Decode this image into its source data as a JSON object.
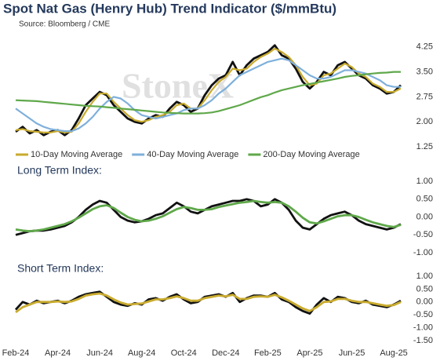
{
  "chart_data": [
    {
      "type": "line",
      "title": "Spot Nat Gas (Henry Hub) Trend Indicator ($/mmBtu)",
      "subtitle": "Source: Bloomberg / CME",
      "watermark": "StoneX",
      "ylim": [
        1.25,
        4.6
      ],
      "yticks": [
        1.25,
        {
          "value": 2,
          "label": "2.00"
        },
        2.75,
        {
          "value": 3.5,
          "label": "3.50"
        },
        4.25
      ],
      "grid": false,
      "legend": "bottom",
      "series": [
        {
          "color": "#111111",
          "values": [
            1.7,
            1.85,
            1.65,
            1.75,
            1.6,
            1.7,
            1.75,
            1.6,
            1.75,
            2.1,
            2.5,
            2.7,
            2.9,
            2.8,
            2.5,
            2.3,
            2.1,
            2.0,
            1.95,
            2.1,
            2.2,
            2.15,
            2.4,
            2.6,
            2.5,
            2.3,
            2.4,
            2.8,
            3.1,
            3.3,
            3.4,
            3.8,
            3.4,
            3.7,
            3.9,
            4.0,
            4.1,
            4.3,
            4.0,
            3.9,
            3.6,
            3.2,
            3.0,
            3.2,
            3.5,
            3.4,
            3.7,
            3.8,
            3.6,
            3.4,
            3.3,
            3.1,
            3.0,
            2.85,
            2.9,
            3.1
          ]
        },
        {
          "name": "10-Day Moving Average",
          "color": "#c9ab2e",
          "values": [
            1.75,
            1.78,
            1.72,
            1.7,
            1.68,
            1.68,
            1.72,
            1.68,
            1.7,
            1.95,
            2.3,
            2.6,
            2.85,
            2.85,
            2.6,
            2.4,
            2.2,
            2.05,
            2.0,
            2.05,
            2.15,
            2.2,
            2.3,
            2.5,
            2.55,
            2.4,
            2.4,
            2.65,
            2.95,
            3.2,
            3.35,
            3.6,
            3.55,
            3.6,
            3.8,
            3.95,
            4.05,
            4.2,
            4.1,
            3.95,
            3.7,
            3.35,
            3.1,
            3.15,
            3.4,
            3.45,
            3.6,
            3.75,
            3.65,
            3.45,
            3.35,
            3.15,
            3.05,
            2.9,
            2.9,
            3.0
          ]
        },
        {
          "name": "40-Day Moving Average",
          "color": "#7fb0db",
          "values": [
            2.4,
            2.25,
            2.1,
            1.95,
            1.85,
            1.78,
            1.75,
            1.72,
            1.72,
            1.8,
            1.95,
            2.15,
            2.4,
            2.6,
            2.75,
            2.7,
            2.55,
            2.35,
            2.2,
            2.15,
            2.1,
            2.15,
            2.2,
            2.25,
            2.35,
            2.4,
            2.4,
            2.5,
            2.65,
            2.85,
            3.0,
            3.2,
            3.4,
            3.5,
            3.6,
            3.7,
            3.8,
            3.85,
            3.9,
            3.85,
            3.7,
            3.55,
            3.4,
            3.3,
            3.3,
            3.35,
            3.45,
            3.55,
            3.55,
            3.5,
            3.45,
            3.35,
            3.25,
            3.1,
            3.05,
            3.05
          ]
        },
        {
          "name": "200-Day Moving Average",
          "color": "#5fa84a",
          "values": [
            2.65,
            2.64,
            2.63,
            2.62,
            2.6,
            2.58,
            2.56,
            2.54,
            2.52,
            2.5,
            2.48,
            2.47,
            2.46,
            2.44,
            2.42,
            2.4,
            2.38,
            2.36,
            2.34,
            2.32,
            2.3,
            2.28,
            2.27,
            2.26,
            2.25,
            2.25,
            2.25,
            2.26,
            2.28,
            2.32,
            2.38,
            2.44,
            2.5,
            2.58,
            2.66,
            2.74,
            2.8,
            2.88,
            2.95,
            3.0,
            3.05,
            3.1,
            3.14,
            3.18,
            3.22,
            3.26,
            3.3,
            3.35,
            3.38,
            3.4,
            3.43,
            3.45,
            3.47,
            3.48,
            3.5,
            3.5
          ]
        }
      ]
    },
    {
      "type": "line",
      "title": "Long Term Index:",
      "ylim": [
        -1,
        1
      ],
      "yticks": [
        {
          "value": 1,
          "label": "1.00"
        },
        {
          "value": 0.5,
          "label": "0.50"
        },
        {
          "value": 0,
          "label": "0.00"
        },
        {
          "value": -0.5,
          "label": "-0.50"
        },
        {
          "value": -1,
          "label": "-1.00"
        }
      ],
      "grid": false,
      "series": [
        {
          "color": "#111111",
          "values": [
            -0.5,
            -0.45,
            -0.4,
            -0.38,
            -0.38,
            -0.35,
            -0.3,
            -0.25,
            -0.15,
            0.0,
            0.2,
            0.35,
            0.45,
            0.4,
            0.2,
            0.0,
            -0.1,
            -0.15,
            -0.12,
            -0.05,
            0.05,
            0.1,
            0.25,
            0.4,
            0.3,
            0.15,
            0.1,
            0.2,
            0.3,
            0.35,
            0.4,
            0.45,
            0.45,
            0.5,
            0.45,
            0.3,
            0.35,
            0.5,
            0.4,
            0.2,
            -0.1,
            -0.3,
            -0.35,
            -0.2,
            -0.05,
            0.05,
            0.1,
            0.15,
            0.05,
            -0.1,
            -0.2,
            -0.25,
            -0.3,
            -0.35,
            -0.3,
            -0.2
          ]
        },
        {
          "color": "#5fa84a",
          "values": [
            -0.35,
            -0.38,
            -0.4,
            -0.38,
            -0.35,
            -0.3,
            -0.25,
            -0.2,
            -0.12,
            -0.02,
            0.1,
            0.22,
            0.3,
            0.33,
            0.25,
            0.12,
            0.0,
            -0.08,
            -0.12,
            -0.1,
            -0.05,
            0.02,
            0.12,
            0.22,
            0.28,
            0.25,
            0.2,
            0.2,
            0.22,
            0.28,
            0.32,
            0.36,
            0.4,
            0.42,
            0.45,
            0.42,
            0.4,
            0.42,
            0.4,
            0.3,
            0.15,
            -0.02,
            -0.15,
            -0.18,
            -0.12,
            -0.05,
            0.02,
            0.05,
            0.05,
            0.0,
            -0.08,
            -0.15,
            -0.2,
            -0.25,
            -0.28,
            -0.22
          ]
        }
      ]
    },
    {
      "type": "line",
      "title": "Short Term Index:",
      "ylim": [
        -1.5,
        1
      ],
      "yticks": [
        {
          "value": 1,
          "label": "1.00"
        },
        {
          "value": 0.5,
          "label": "0.50"
        },
        {
          "value": 0,
          "label": "0.00"
        },
        {
          "value": -0.5,
          "label": "-0.50"
        },
        {
          "value": -1,
          "label": "-1.00"
        },
        {
          "value": -1.5,
          "label": "-1.50"
        }
      ],
      "grid": false,
      "categories": [
        "Feb-24",
        null,
        null,
        null,
        null,
        null,
        "Apr-24",
        null,
        null,
        null,
        null,
        null,
        "Jun-24",
        null,
        null,
        null,
        null,
        null,
        "Aug-24",
        null,
        null,
        null,
        null,
        null,
        "Oct-24",
        null,
        null,
        null,
        null,
        null,
        "Dec-24",
        null,
        null,
        null,
        null,
        null,
        "Feb-25",
        null,
        null,
        null,
        null,
        null,
        "Apr-25",
        null,
        null,
        null,
        null,
        null,
        "Jun-25",
        null,
        null,
        null,
        null,
        null,
        "Aug-25",
        null
      ],
      "series": [
        {
          "color": "#111111",
          "values": [
            -0.3,
            0.0,
            -0.1,
            0.05,
            -0.05,
            0.0,
            0.05,
            -0.05,
            0.05,
            0.2,
            0.3,
            0.35,
            0.4,
            0.2,
            0.0,
            -0.1,
            -0.15,
            -0.05,
            -0.1,
            0.1,
            0.15,
            0.05,
            0.2,
            0.3,
            0.1,
            -0.05,
            0.0,
            0.2,
            0.25,
            0.3,
            0.2,
            0.35,
            0.0,
            0.15,
            0.25,
            0.25,
            0.2,
            0.35,
            0.1,
            0.0,
            -0.2,
            -0.35,
            -0.45,
            -0.1,
            0.15,
            0.0,
            0.2,
            0.15,
            0.0,
            -0.05,
            0.05,
            -0.1,
            -0.15,
            -0.2,
            -0.1,
            0.05
          ]
        },
        {
          "color": "#c9ab2e",
          "values": [
            -0.4,
            -0.2,
            -0.1,
            0.0,
            0.0,
            0.0,
            0.02,
            0.0,
            0.02,
            0.12,
            0.25,
            0.3,
            0.33,
            0.25,
            0.1,
            -0.02,
            -0.1,
            -0.08,
            -0.06,
            0.02,
            0.1,
            0.1,
            0.15,
            0.22,
            0.15,
            0.05,
            0.05,
            0.15,
            0.2,
            0.25,
            0.22,
            0.28,
            0.12,
            0.12,
            0.2,
            0.22,
            0.2,
            0.28,
            0.18,
            0.05,
            -0.1,
            -0.25,
            -0.35,
            -0.2,
            0.0,
            0.02,
            0.12,
            0.12,
            0.05,
            0.0,
            0.0,
            -0.05,
            -0.1,
            -0.15,
            -0.12,
            0.0
          ]
        }
      ]
    }
  ]
}
